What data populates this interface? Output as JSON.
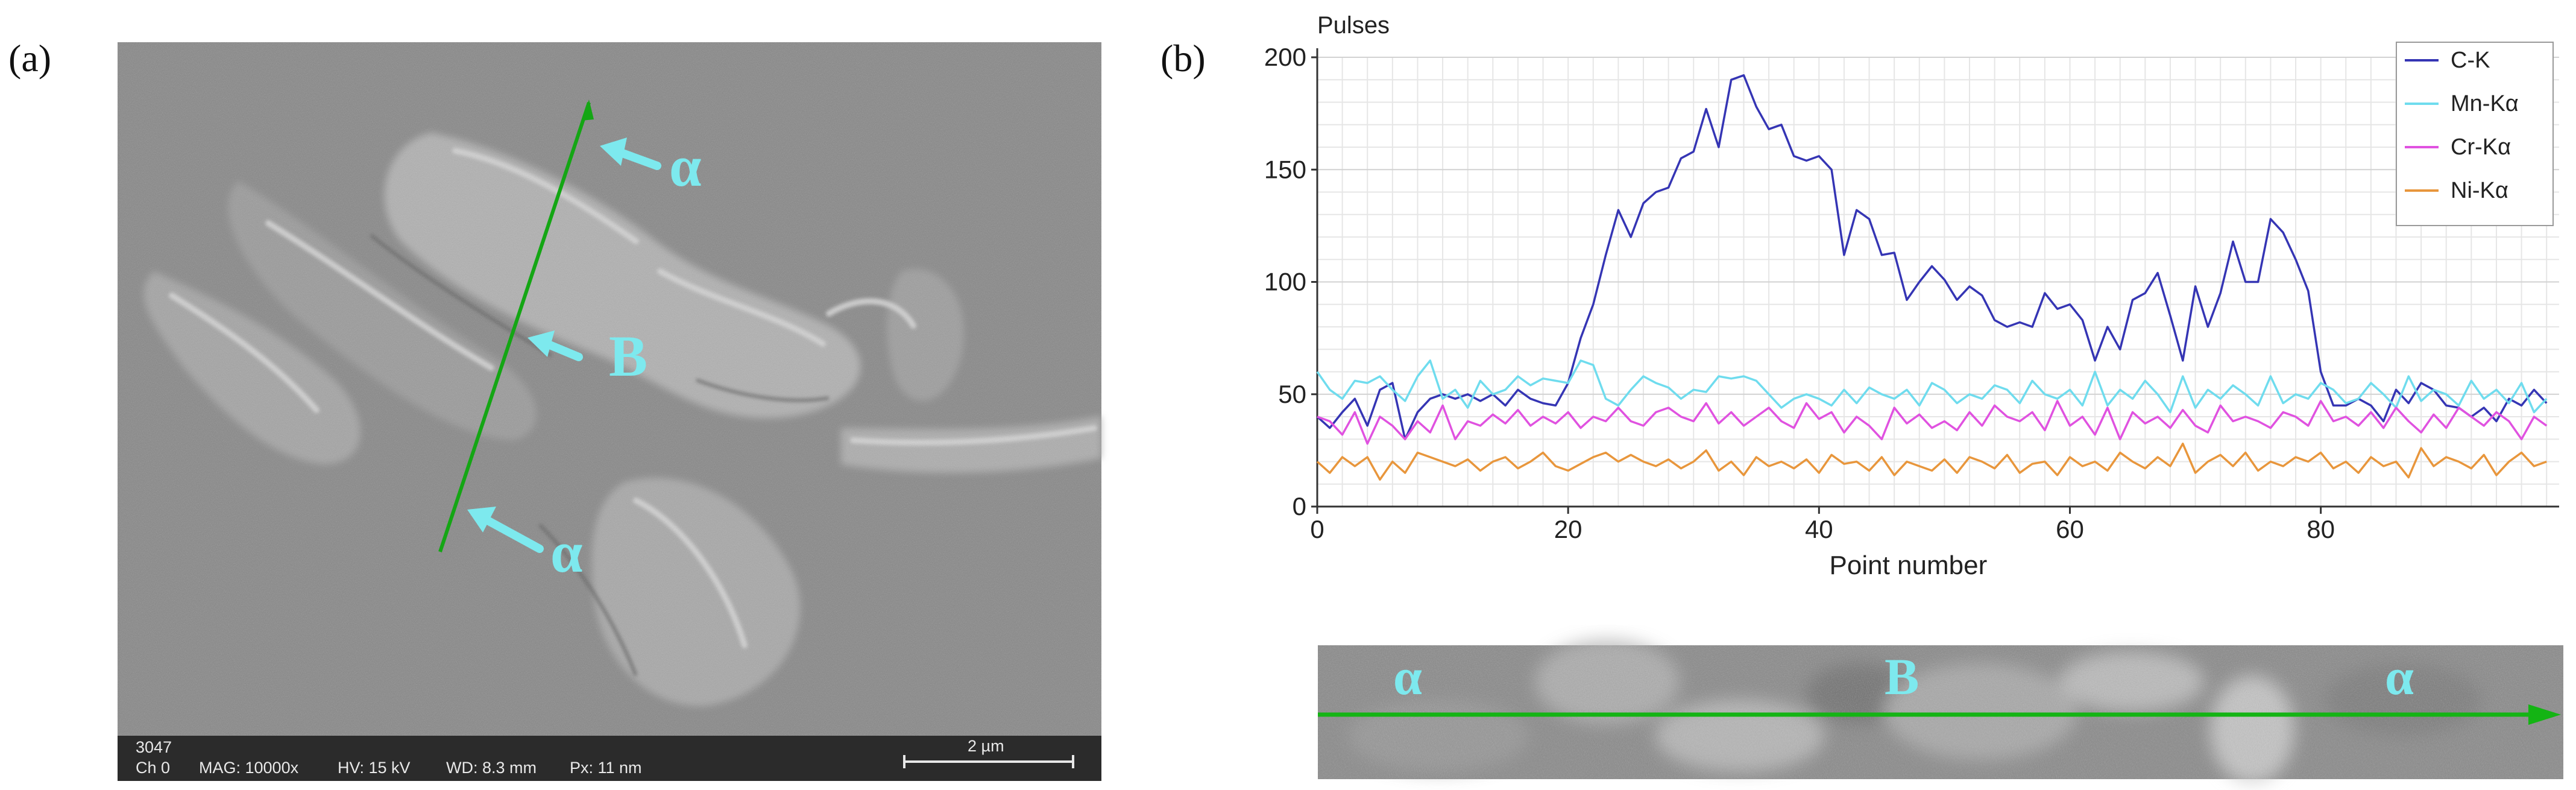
{
  "figure": {
    "panel_a_label": "(a)",
    "panel_b_label": "(b)"
  },
  "sem": {
    "labels": {
      "alpha_top": "α",
      "b": "B",
      "alpha_bottom": "α"
    },
    "label_color": "#7de9ee",
    "scan_line_color": "#14a614",
    "info": {
      "id": "3047",
      "channel": "Ch 0",
      "mag": "MAG: 10000x",
      "hv": "HV: 15 kV",
      "wd": "WD: 8.3 mm",
      "px": "Px: 11 nm",
      "scale_bar": "2 µm"
    }
  },
  "chart_data": {
    "type": "line",
    "title": "",
    "ylabel": "Pulses",
    "xlabel": "Point number",
    "xlim": [
      0,
      99
    ],
    "ylim": [
      0,
      200
    ],
    "x_ticks": [
      0,
      20,
      40,
      60,
      80
    ],
    "y_ticks": [
      0,
      50,
      100,
      150,
      200
    ],
    "grid": true,
    "legend_position": "top-right",
    "series": [
      {
        "name": "C-K",
        "color": "#3535b4",
        "values": [
          40,
          35,
          42,
          48,
          36,
          52,
          55,
          30,
          42,
          48,
          50,
          48,
          50,
          47,
          50,
          45,
          52,
          48,
          46,
          45,
          55,
          75,
          90,
          112,
          132,
          120,
          135,
          140,
          142,
          155,
          158,
          177,
          160,
          190,
          192,
          178,
          168,
          170,
          156,
          154,
          156,
          150,
          112,
          132,
          128,
          112,
          113,
          92,
          100,
          107,
          101,
          92,
          98,
          94,
          83,
          80,
          82,
          80,
          95,
          88,
          90,
          83,
          65,
          80,
          70,
          92,
          95,
          104,
          85,
          65,
          98,
          80,
          95,
          118,
          100,
          100,
          128,
          122,
          110,
          96,
          60,
          45,
          45,
          48,
          45,
          38,
          52,
          46,
          55,
          52,
          45,
          44,
          40,
          44,
          38,
          48,
          45,
          52,
          46
        ]
      },
      {
        "name": "Mn-Kα",
        "color": "#6fdcee",
        "values": [
          60,
          52,
          48,
          56,
          55,
          58,
          52,
          47,
          58,
          65,
          48,
          52,
          44,
          56,
          50,
          52,
          58,
          54,
          57,
          56,
          55,
          65,
          63,
          48,
          45,
          52,
          58,
          55,
          53,
          48,
          52,
          51,
          58,
          57,
          58,
          56,
          50,
          44,
          48,
          50,
          48,
          45,
          52,
          46,
          53,
          50,
          48,
          52,
          45,
          55,
          52,
          46,
          50,
          48,
          54,
          52,
          46,
          56,
          50,
          48,
          52,
          45,
          60,
          45,
          52,
          48,
          56,
          50,
          42,
          58,
          44,
          52,
          48,
          54,
          50,
          45,
          58,
          46,
          50,
          48,
          55,
          52,
          46,
          48,
          55,
          50,
          44,
          58,
          47,
          52,
          50,
          45,
          56,
          48,
          52,
          46,
          55,
          42,
          48
        ]
      },
      {
        "name": "Cr-Kα",
        "color": "#e052e0",
        "values": [
          40,
          38,
          32,
          42,
          28,
          40,
          36,
          30,
          38,
          33,
          45,
          30,
          38,
          36,
          41,
          37,
          43,
          36,
          40,
          37,
          42,
          35,
          40,
          38,
          44,
          38,
          36,
          42,
          44,
          40,
          38,
          46,
          37,
          42,
          36,
          40,
          44,
          38,
          35,
          46,
          39,
          42,
          33,
          40,
          36,
          30,
          44,
          37,
          41,
          35,
          38,
          34,
          42,
          36,
          45,
          40,
          38,
          42,
          34,
          47,
          36,
          40,
          32,
          44,
          30,
          42,
          37,
          40,
          35,
          43,
          36,
          33,
          45,
          38,
          40,
          38,
          35,
          42,
          40,
          36,
          47,
          38,
          40,
          36,
          42,
          35,
          44,
          38,
          33,
          41,
          35,
          44,
          40,
          36,
          42,
          38,
          30,
          40,
          36
        ]
      },
      {
        "name": "Ni-Kα",
        "color": "#e8963c",
        "values": [
          20,
          15,
          22,
          18,
          22,
          12,
          20,
          15,
          24,
          22,
          20,
          18,
          21,
          16,
          20,
          22,
          17,
          20,
          24,
          18,
          16,
          19,
          22,
          24,
          20,
          23,
          20,
          18,
          21,
          17,
          20,
          25,
          16,
          20,
          14,
          22,
          18,
          20,
          17,
          21,
          15,
          23,
          19,
          20,
          16,
          22,
          14,
          20,
          18,
          16,
          21,
          15,
          22,
          20,
          17,
          23,
          15,
          19,
          20,
          14,
          22,
          18,
          20,
          16,
          24,
          20,
          17,
          22,
          18,
          28,
          15,
          20,
          23,
          18,
          24,
          16,
          20,
          18,
          22,
          20,
          24,
          17,
          20,
          15,
          22,
          18,
          20,
          13,
          26,
          18,
          22,
          20,
          17,
          23,
          14,
          20,
          24,
          18,
          20
        ]
      }
    ]
  },
  "strip": {
    "label_left": "α",
    "label_mid": "B",
    "label_right": "α"
  }
}
